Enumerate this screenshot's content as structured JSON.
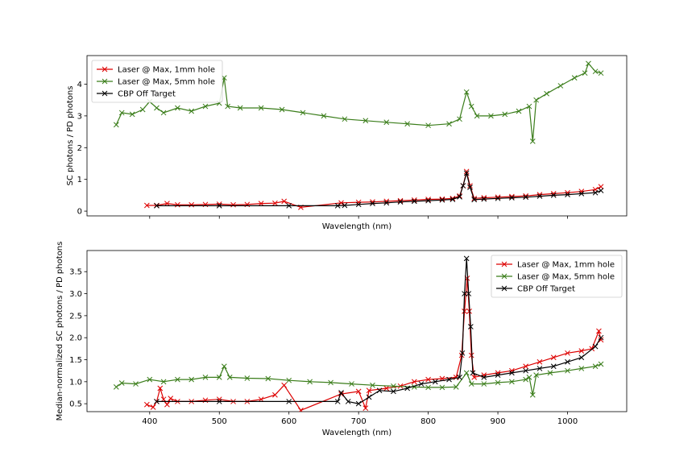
{
  "chart_data": [
    {
      "type": "line",
      "xlabel": "Wavelength (nm)",
      "ylabel": "SC photons / PD photons",
      "xlim": [
        310,
        1085
      ],
      "ylim": [
        -0.15,
        4.9
      ],
      "xticks": [
        400,
        500,
        600,
        700,
        800,
        900,
        1000
      ],
      "xtick_labels_shown": false,
      "yticks": [
        0,
        1,
        2,
        3,
        4
      ],
      "legend": "top-left",
      "marker": "x",
      "series": [
        {
          "name": "Laser @ Max, 1mm hole",
          "color": "#dd0000",
          "points": [
            [
              396,
              0.18
            ],
            [
              410,
              0.18
            ],
            [
              425,
              0.24
            ],
            [
              440,
              0.2
            ],
            [
              460,
              0.2
            ],
            [
              480,
              0.21
            ],
            [
              500,
              0.22
            ],
            [
              520,
              0.2
            ],
            [
              540,
              0.21
            ],
            [
              560,
              0.24
            ],
            [
              580,
              0.25
            ],
            [
              593,
              0.31
            ],
            [
              617,
              0.12
            ],
            [
              675,
              0.26
            ],
            [
              700,
              0.28
            ],
            [
              720,
              0.29
            ],
            [
              740,
              0.31
            ],
            [
              760,
              0.33
            ],
            [
              780,
              0.35
            ],
            [
              800,
              0.37
            ],
            [
              820,
              0.38
            ],
            [
              835,
              0.4
            ],
            [
              845,
              0.48
            ],
            [
              850,
              0.8
            ],
            [
              855,
              1.25
            ],
            [
              860,
              0.8
            ],
            [
              866,
              0.4
            ],
            [
              880,
              0.42
            ],
            [
              900,
              0.44
            ],
            [
              920,
              0.46
            ],
            [
              940,
              0.48
            ],
            [
              960,
              0.52
            ],
            [
              980,
              0.55
            ],
            [
              1000,
              0.58
            ],
            [
              1020,
              0.62
            ],
            [
              1040,
              0.68
            ],
            [
              1048,
              0.77
            ]
          ]
        },
        {
          "name": "Laser @ Max, 5mm hole",
          "color": "#3a7d1a",
          "points": [
            [
              352,
              2.72
            ],
            [
              360,
              3.1
            ],
            [
              375,
              3.05
            ],
            [
              390,
              3.2
            ],
            [
              400,
              3.45
            ],
            [
              410,
              3.25
            ],
            [
              420,
              3.1
            ],
            [
              440,
              3.25
            ],
            [
              460,
              3.15
            ],
            [
              480,
              3.3
            ],
            [
              500,
              3.4
            ],
            [
              507,
              4.2
            ],
            [
              512,
              3.3
            ],
            [
              530,
              3.25
            ],
            [
              560,
              3.25
            ],
            [
              590,
              3.2
            ],
            [
              620,
              3.1
            ],
            [
              650,
              3.0
            ],
            [
              680,
              2.9
            ],
            [
              710,
              2.85
            ],
            [
              740,
              2.8
            ],
            [
              770,
              2.75
            ],
            [
              800,
              2.7
            ],
            [
              830,
              2.75
            ],
            [
              845,
              2.9
            ],
            [
              855,
              3.75
            ],
            [
              862,
              3.3
            ],
            [
              870,
              3.0
            ],
            [
              890,
              3.0
            ],
            [
              910,
              3.05
            ],
            [
              930,
              3.15
            ],
            [
              945,
              3.3
            ],
            [
              950,
              2.2
            ],
            [
              955,
              3.5
            ],
            [
              970,
              3.7
            ],
            [
              990,
              3.95
            ],
            [
              1010,
              4.2
            ],
            [
              1025,
              4.35
            ],
            [
              1030,
              4.65
            ],
            [
              1040,
              4.4
            ],
            [
              1048,
              4.35
            ]
          ]
        },
        {
          "name": "CBP Off Target",
          "color": "#000000",
          "points": [
            [
              410,
              0.17
            ],
            [
              500,
              0.17
            ],
            [
              600,
              0.17
            ],
            [
              670,
              0.17
            ],
            [
              680,
              0.18
            ],
            [
              700,
              0.21
            ],
            [
              720,
              0.24
            ],
            [
              740,
              0.26
            ],
            [
              760,
              0.29
            ],
            [
              780,
              0.31
            ],
            [
              800,
              0.33
            ],
            [
              820,
              0.35
            ],
            [
              835,
              0.37
            ],
            [
              845,
              0.45
            ],
            [
              850,
              0.8
            ],
            [
              855,
              1.2
            ],
            [
              860,
              0.75
            ],
            [
              866,
              0.36
            ],
            [
              880,
              0.38
            ],
            [
              900,
              0.4
            ],
            [
              920,
              0.42
            ],
            [
              940,
              0.44
            ],
            [
              960,
              0.47
            ],
            [
              980,
              0.5
            ],
            [
              1000,
              0.52
            ],
            [
              1020,
              0.55
            ],
            [
              1040,
              0.58
            ],
            [
              1048,
              0.65
            ]
          ]
        }
      ]
    },
    {
      "type": "line",
      "xlabel": "Wavelength (nm)",
      "ylabel": "Median-normalized SC photons / PD photons",
      "xlim": [
        310,
        1085
      ],
      "ylim": [
        0.32,
        3.98
      ],
      "xticks": [
        400,
        500,
        600,
        700,
        800,
        900,
        1000
      ],
      "yticks": [
        0.5,
        1.0,
        1.5,
        2.0,
        2.5,
        3.0,
        3.5
      ],
      "ytick_labels": [
        "0.5",
        "1.0",
        "1.5",
        "2.0",
        "2.5",
        "3.0",
        "3.5"
      ],
      "legend": "top-right",
      "marker": "x",
      "series": [
        {
          "name": "Laser @ Max, 1mm hole",
          "color": "#dd0000",
          "points": [
            [
              396,
              0.48
            ],
            [
              405,
              0.42
            ],
            [
              410,
              0.55
            ],
            [
              415,
              0.85
            ],
            [
              420,
              0.6
            ],
            [
              425,
              0.48
            ],
            [
              430,
              0.62
            ],
            [
              440,
              0.55
            ],
            [
              460,
              0.55
            ],
            [
              480,
              0.58
            ],
            [
              500,
              0.6
            ],
            [
              520,
              0.55
            ],
            [
              540,
              0.55
            ],
            [
              560,
              0.6
            ],
            [
              580,
              0.7
            ],
            [
              593,
              0.92
            ],
            [
              617,
              0.35
            ],
            [
              675,
              0.72
            ],
            [
              700,
              0.78
            ],
            [
              710,
              0.4
            ],
            [
              715,
              0.8
            ],
            [
              740,
              0.85
            ],
            [
              760,
              0.9
            ],
            [
              780,
              1.0
            ],
            [
              800,
              1.05
            ],
            [
              820,
              1.07
            ],
            [
              840,
              1.1
            ],
            [
              848,
              1.6
            ],
            [
              852,
              2.6
            ],
            [
              856,
              3.35
            ],
            [
              859,
              2.6
            ],
            [
              862,
              1.6
            ],
            [
              866,
              1.1
            ],
            [
              880,
              1.15
            ],
            [
              900,
              1.2
            ],
            [
              920,
              1.25
            ],
            [
              940,
              1.35
            ],
            [
              960,
              1.45
            ],
            [
              980,
              1.55
            ],
            [
              1000,
              1.65
            ],
            [
              1020,
              1.7
            ],
            [
              1035,
              1.75
            ],
            [
              1045,
              2.15
            ],
            [
              1048,
              1.95
            ]
          ]
        },
        {
          "name": "Laser @ Max, 5mm hole",
          "color": "#3a7d1a",
          "points": [
            [
              352,
              0.88
            ],
            [
              360,
              0.97
            ],
            [
              380,
              0.95
            ],
            [
              400,
              1.05
            ],
            [
              420,
              1.0
            ],
            [
              440,
              1.05
            ],
            [
              460,
              1.05
            ],
            [
              480,
              1.1
            ],
            [
              500,
              1.1
            ],
            [
              507,
              1.35
            ],
            [
              515,
              1.1
            ],
            [
              540,
              1.08
            ],
            [
              570,
              1.07
            ],
            [
              600,
              1.03
            ],
            [
              630,
              1.0
            ],
            [
              660,
              0.98
            ],
            [
              690,
              0.95
            ],
            [
              720,
              0.92
            ],
            [
              750,
              0.9
            ],
            [
              780,
              0.88
            ],
            [
              800,
              0.87
            ],
            [
              820,
              0.87
            ],
            [
              840,
              0.88
            ],
            [
              855,
              1.2
            ],
            [
              862,
              0.95
            ],
            [
              880,
              0.95
            ],
            [
              900,
              0.98
            ],
            [
              920,
              1.0
            ],
            [
              940,
              1.05
            ],
            [
              945,
              1.1
            ],
            [
              950,
              0.7
            ],
            [
              955,
              1.15
            ],
            [
              975,
              1.2
            ],
            [
              1000,
              1.25
            ],
            [
              1020,
              1.3
            ],
            [
              1040,
              1.35
            ],
            [
              1048,
              1.4
            ]
          ]
        },
        {
          "name": "CBP Off Target",
          "color": "#000000",
          "points": [
            [
              410,
              0.55
            ],
            [
              500,
              0.55
            ],
            [
              600,
              0.55
            ],
            [
              670,
              0.55
            ],
            [
              675,
              0.75
            ],
            [
              685,
              0.55
            ],
            [
              700,
              0.5
            ],
            [
              715,
              0.65
            ],
            [
              730,
              0.8
            ],
            [
              750,
              0.78
            ],
            [
              770,
              0.85
            ],
            [
              790,
              0.95
            ],
            [
              810,
              1.0
            ],
            [
              830,
              1.05
            ],
            [
              845,
              1.1
            ],
            [
              849,
              1.65
            ],
            [
              852,
              3.0
            ],
            [
              855,
              3.8
            ],
            [
              858,
              3.0
            ],
            [
              861,
              2.25
            ],
            [
              864,
              1.2
            ],
            [
              880,
              1.1
            ],
            [
              900,
              1.15
            ],
            [
              920,
              1.2
            ],
            [
              940,
              1.25
            ],
            [
              960,
              1.3
            ],
            [
              980,
              1.35
            ],
            [
              1000,
              1.45
            ],
            [
              1020,
              1.55
            ],
            [
              1040,
              1.8
            ],
            [
              1048,
              2.0
            ]
          ]
        }
      ]
    }
  ]
}
